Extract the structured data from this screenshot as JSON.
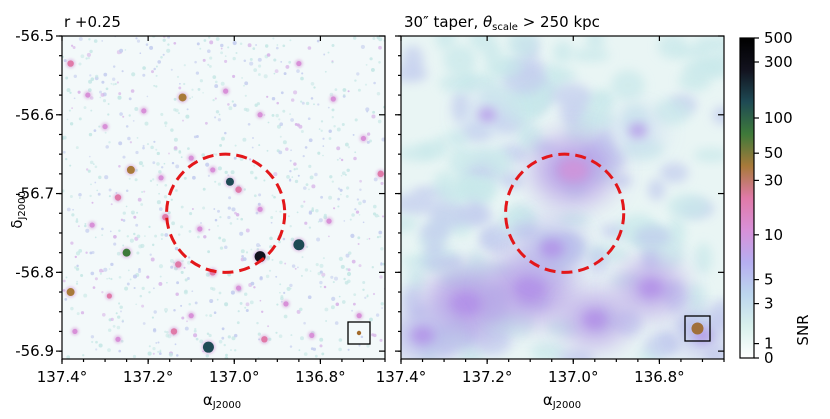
{
  "chart_data": [
    {
      "type": "heatmap",
      "title": "r +0.25",
      "xlabel": "α",
      "xlabel_sub": "J2000",
      "ylabel": "δ",
      "ylabel_sub": "J2000",
      "xlim": [
        137.4,
        136.65
      ],
      "ylim": [
        -56.91,
        -56.5
      ],
      "x_ticks": [
        137.4,
        137.2,
        137.0,
        136.8
      ],
      "x_tick_labels": [
        "137.4°",
        "137.2°",
        "137.0°",
        "136.8°"
      ],
      "y_ticks": [
        -56.5,
        -56.6,
        -56.7,
        -56.8,
        -56.9
      ],
      "y_tick_labels": [
        "-56.5",
        "-56.6",
        "-56.7",
        "-56.8",
        "-56.9"
      ],
      "circle": {
        "center_ra": 137.02,
        "center_dec": -56.725,
        "radius_deg": 0.075,
        "color": "#e3171a",
        "style": "dashed"
      },
      "beam_color": "#a26a2a",
      "sources": [
        {
          "ra": 137.38,
          "dec": -56.535,
          "snr": 30
        },
        {
          "ra": 137.34,
          "dec": -56.575,
          "snr": 10
        },
        {
          "ra": 137.3,
          "dec": -56.615,
          "snr": 8
        },
        {
          "ra": 137.21,
          "dec": -56.595,
          "snr": 10
        },
        {
          "ra": 137.12,
          "dec": -56.578,
          "snr": 40
        },
        {
          "ra": 137.02,
          "dec": -56.57,
          "snr": 8
        },
        {
          "ra": 136.94,
          "dec": -56.6,
          "snr": 8
        },
        {
          "ra": 136.85,
          "dec": -56.535,
          "snr": 10
        },
        {
          "ra": 136.77,
          "dec": -56.58,
          "snr": 10
        },
        {
          "ra": 136.7,
          "dec": -56.63,
          "snr": 8
        },
        {
          "ra": 137.24,
          "dec": -56.67,
          "snr": 40
        },
        {
          "ra": 137.17,
          "dec": -56.68,
          "snr": 10
        },
        {
          "ra": 137.1,
          "dec": -56.655,
          "snr": 6
        },
        {
          "ra": 137.05,
          "dec": -56.67,
          "snr": 8
        },
        {
          "ra": 137.01,
          "dec": -56.685,
          "snr": 150
        },
        {
          "ra": 136.99,
          "dec": -56.695,
          "snr": 30
        },
        {
          "ra": 136.94,
          "dec": -56.72,
          "snr": 8
        },
        {
          "ra": 136.66,
          "dec": -56.675,
          "snr": 30
        },
        {
          "ra": 137.27,
          "dec": -56.705,
          "snr": 15
        },
        {
          "ra": 137.33,
          "dec": -56.74,
          "snr": 10
        },
        {
          "ra": 137.16,
          "dec": -56.73,
          "snr": 25
        },
        {
          "ra": 137.08,
          "dec": -56.745,
          "snr": 8
        },
        {
          "ra": 136.94,
          "dec": -56.78,
          "snr": 400
        },
        {
          "ra": 136.85,
          "dec": -56.765,
          "snr": 300
        },
        {
          "ra": 136.78,
          "dec": -56.735,
          "snr": 10
        },
        {
          "ra": 137.25,
          "dec": -56.775,
          "snr": 60
        },
        {
          "ra": 137.13,
          "dec": -56.79,
          "snr": 30
        },
        {
          "ra": 137.05,
          "dec": -56.8,
          "snr": 20
        },
        {
          "ra": 137.38,
          "dec": -56.825,
          "snr": 40
        },
        {
          "ra": 137.29,
          "dec": -56.83,
          "snr": 12
        },
        {
          "ra": 136.99,
          "dec": -56.82,
          "snr": 10
        },
        {
          "ra": 136.88,
          "dec": -56.84,
          "snr": 10
        },
        {
          "ra": 136.71,
          "dec": -56.855,
          "snr": 8
        },
        {
          "ra": 137.37,
          "dec": -56.875,
          "snr": 10
        },
        {
          "ra": 137.27,
          "dec": -56.885,
          "snr": 10
        },
        {
          "ra": 137.14,
          "dec": -56.875,
          "snr": 20
        },
        {
          "ra": 137.06,
          "dec": -56.895,
          "snr": 300
        },
        {
          "ra": 136.93,
          "dec": -56.885,
          "snr": 15
        },
        {
          "ra": 137.1,
          "dec": -56.855,
          "snr": 8
        },
        {
          "ra": 136.82,
          "dec": -56.88,
          "snr": 6
        }
      ]
    },
    {
      "type": "heatmap",
      "title_prefix": "30″ taper, ",
      "title_theta": "θ",
      "title_sub": "scale",
      "title_suffix": " > 250 kpc",
      "xlabel": "α",
      "xlabel_sub": "J2000",
      "xlim": [
        137.4,
        136.65
      ],
      "ylim": [
        -56.91,
        -56.5
      ],
      "x_ticks": [
        137.4,
        137.2,
        137.0,
        136.8
      ],
      "x_tick_labels": [
        "137.4°",
        "137.2°",
        "137.0°",
        "136.8°"
      ],
      "circle": {
        "center_ra": 137.02,
        "center_dec": -56.725,
        "radius_deg": 0.075,
        "color": "#e3171a",
        "style": "dashed"
      },
      "beam_color": "#a0703a",
      "diffuse_regions": [
        {
          "ra": 137.25,
          "dec": -56.84,
          "snr": 6
        },
        {
          "ra": 137.1,
          "dec": -56.82,
          "snr": 6
        },
        {
          "ra": 136.95,
          "dec": -56.86,
          "snr": 5
        },
        {
          "ra": 136.82,
          "dec": -56.82,
          "snr": 5
        },
        {
          "ra": 137.05,
          "dec": -56.77,
          "snr": 4
        },
        {
          "ra": 137.0,
          "dec": -56.67,
          "snr": 8
        },
        {
          "ra": 137.35,
          "dec": -56.88,
          "snr": 4
        },
        {
          "ra": 136.7,
          "dec": -56.88,
          "snr": 3
        },
        {
          "ra": 137.2,
          "dec": -56.6,
          "snr": 2
        },
        {
          "ra": 136.85,
          "dec": -56.62,
          "snr": 2
        }
      ]
    }
  ],
  "colorbar": {
    "label": "SNR",
    "ticks": [
      0,
      1,
      3,
      5,
      10,
      30,
      50,
      100,
      300,
      500
    ],
    "tick_labels": [
      "0",
      "1",
      "3",
      "5",
      "10",
      "30",
      "50",
      "100",
      "300",
      "500"
    ],
    "colors": [
      "#ffffff",
      "#d8f0ec",
      "#bcd6ee",
      "#b6aef0",
      "#d890d8",
      "#e07aa8",
      "#a87a3a",
      "#3e7a3a",
      "#1e4a54",
      "#12121e",
      "#000000"
    ]
  }
}
